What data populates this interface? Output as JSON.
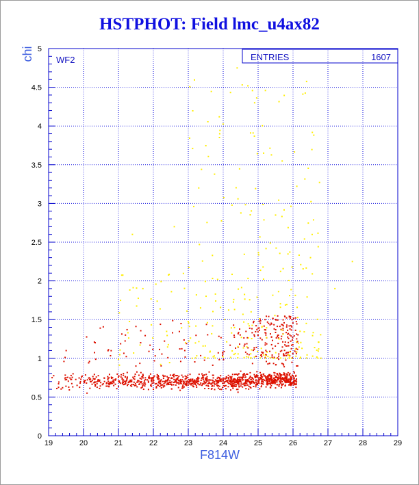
{
  "title": "HSTPHOT: Field lmc_u4ax82",
  "colors": {
    "frame": "#0000cc",
    "grid": "#1a1ae0",
    "text_blue": "#1010e0",
    "points_red": "#dd1100",
    "points_yellow": "#ffee00"
  },
  "chart_data": {
    "type": "scatter",
    "title": "HSTPHOT: Field lmc_u4ax82",
    "xlabel": "F814W",
    "ylabel": "chi",
    "xlim": [
      19,
      29
    ],
    "ylim": [
      0,
      5
    ],
    "grid": true,
    "xticks": [
      "19",
      "20",
      "21",
      "22",
      "23",
      "24",
      "25",
      "26",
      "27",
      "28",
      "29"
    ],
    "yticks": [
      "0",
      "0.5",
      "1",
      "1.5",
      "2",
      "2.5",
      "3",
      "3.5",
      "4",
      "4.5",
      "5"
    ],
    "chip_label": "WF2",
    "stats_box": {
      "label": "ENTRIES",
      "value": "1607"
    },
    "series": [
      {
        "color": "red",
        "n": 1300,
        "description_points": [
          [
            19.1,
            0.75
          ],
          [
            19.4,
            0.62
          ],
          [
            19.7,
            0.8
          ],
          [
            20.1,
            0.55
          ],
          [
            20.6,
            0.7
          ],
          [
            21.2,
            1.3
          ],
          [
            21.5,
            0.9
          ],
          [
            22.0,
            0.6
          ],
          [
            22.9,
            1.1
          ],
          [
            23.4,
            0.75
          ],
          [
            24.0,
            0.72
          ],
          [
            25.2,
            1.5
          ],
          [
            25.3,
            1.45
          ],
          [
            25.7,
            0.75
          ],
          [
            26.1,
            0.7
          ]
        ]
      },
      {
        "color": "yellow",
        "n": 300,
        "description_points": [
          [
            24.4,
            4.75
          ],
          [
            24.9,
            4.3
          ],
          [
            23.9,
            3.9
          ],
          [
            23.3,
            3.2
          ],
          [
            22.6,
            2.7
          ],
          [
            25.5,
            2.85
          ],
          [
            26.5,
            2.3
          ],
          [
            27.2,
            1.9
          ],
          [
            27.7,
            2.25
          ],
          [
            21.7,
            1.9
          ],
          [
            21.4,
            2.6
          ],
          [
            24.8,
            1.6
          ],
          [
            25.6,
            1.25
          ],
          [
            26.2,
            1.0
          ]
        ]
      }
    ]
  }
}
